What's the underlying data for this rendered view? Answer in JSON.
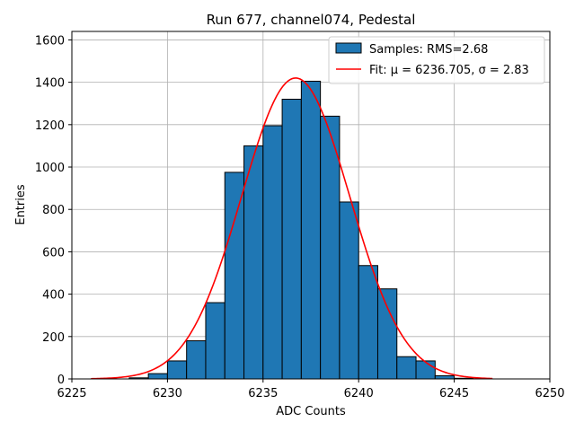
{
  "chart_data": {
    "type": "bar",
    "title": "Run 677, channel074, Pedestal",
    "xlabel": "ADC Counts",
    "ylabel": "Entries",
    "xlim": [
      6225,
      6250
    ],
    "ylim": [
      0,
      1640
    ],
    "xticks": [
      "6225",
      "6230",
      "6235",
      "6240",
      "6245",
      "6250"
    ],
    "yticks": [
      "0",
      "200",
      "400",
      "600",
      "800",
      "1000",
      "1200",
      "1400",
      "1600"
    ],
    "grid": true,
    "legend_position": "top-right",
    "bin_width": 1,
    "series": [
      {
        "name": "Samples: RMS=2.68",
        "kind": "histogram",
        "color": "#1f77b4",
        "bins": [
          {
            "left": 6228,
            "count": 5
          },
          {
            "left": 6229,
            "count": 25
          },
          {
            "left": 6230,
            "count": 85
          },
          {
            "left": 6231,
            "count": 180
          },
          {
            "left": 6232,
            "count": 360
          },
          {
            "left": 6233,
            "count": 975
          },
          {
            "left": 6234,
            "count": 1100
          },
          {
            "left": 6235,
            "count": 1195
          },
          {
            "left": 6236,
            "count": 1320
          },
          {
            "left": 6237,
            "count": 1405
          },
          {
            "left": 6238,
            "count": 1240
          },
          {
            "left": 6239,
            "count": 835
          },
          {
            "left": 6240,
            "count": 535
          },
          {
            "left": 6241,
            "count": 425
          },
          {
            "left": 6242,
            "count": 105
          },
          {
            "left": 6243,
            "count": 85
          },
          {
            "left": 6244,
            "count": 15
          },
          {
            "left": 6245,
            "count": 3
          }
        ]
      },
      {
        "name": "Fit: μ = 6236.705, σ = 2.83",
        "kind": "gaussian-fit",
        "color": "#ff0000",
        "mu": 6236.705,
        "sigma": 2.83,
        "amplitude": 1420,
        "x_range": [
          6226,
          6247
        ]
      }
    ]
  }
}
